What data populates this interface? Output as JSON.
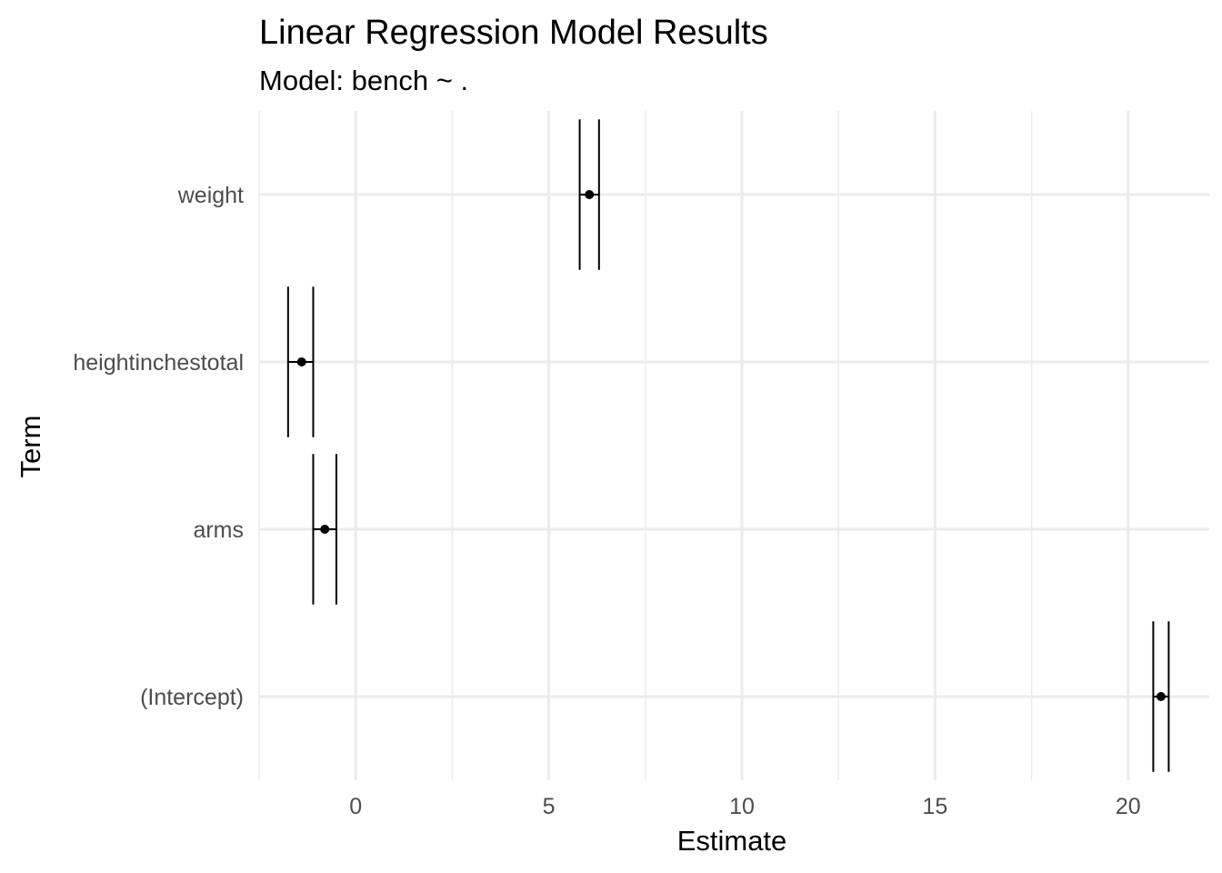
{
  "chart_data": {
    "type": "scatter",
    "title": "Linear Regression Model Results",
    "subtitle": "Model: bench ~ .",
    "xlabel": "Estimate",
    "ylabel": "Term",
    "xlim": [
      -2.5,
      22.1
    ],
    "x_ticks": [
      0,
      5,
      10,
      15,
      20
    ],
    "x_minor_ticks": [
      -2.5,
      2.5,
      7.5,
      12.5,
      17.5
    ],
    "grid": true,
    "categories": [
      "(Intercept)",
      "arms",
      "heightinchestotal",
      "weight"
    ],
    "points": [
      {
        "term": "(Intercept)",
        "estimate": 20.85,
        "xmin": 20.65,
        "xmax": 21.05
      },
      {
        "term": "arms",
        "estimate": -0.8,
        "xmin": -1.1,
        "xmax": -0.5
      },
      {
        "term": "heightinchestotal",
        "estimate": -1.4,
        "xmin": -1.75,
        "xmax": -1.1
      },
      {
        "term": "weight",
        "estimate": 6.05,
        "xmin": 5.8,
        "xmax": 6.3
      }
    ]
  }
}
